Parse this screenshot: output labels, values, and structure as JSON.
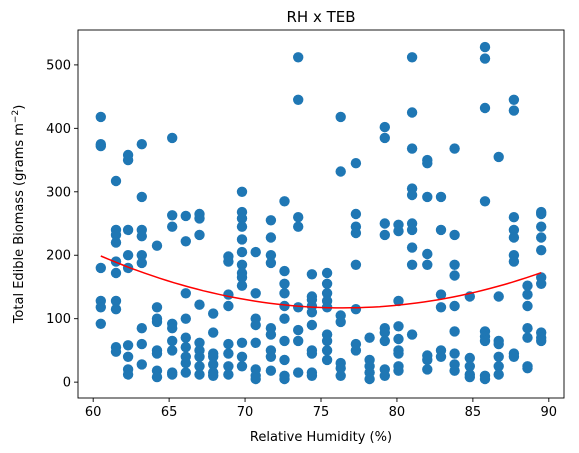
{
  "chart_data": {
    "type": "scatter",
    "title": "RH x TEB",
    "xlabel": "Relative Humidity (%)",
    "ylabel_main": "Total Edible Biomass (grams m",
    "ylabel_exp": "−2",
    "ylabel_close": ")",
    "xlim": [
      59.0,
      91.0
    ],
    "ylim": [
      -25,
      555
    ],
    "xticks": [
      60,
      65,
      70,
      75,
      80,
      85,
      90
    ],
    "yticks": [
      0,
      100,
      200,
      300,
      400,
      500
    ],
    "colors": {
      "points": "#1f77b4",
      "fit": "#ff0000"
    },
    "fit_line": {
      "type": "quadratic",
      "x_range": [
        60.5,
        89.5
      ],
      "coefficients": {
        "a": 0.3235,
        "b": -49.44,
        "vertex_x": 76.4,
        "vertex_y": 117
      }
    },
    "x_groups": [
      60.5,
      61.5,
      62.3,
      63.2,
      64.2,
      65.2,
      66.1,
      67.0,
      67.9,
      68.9,
      69.8,
      70.7,
      71.7,
      72.6,
      73.5,
      74.4,
      75.4,
      76.3,
      77.3,
      78.2,
      79.2,
      80.1,
      81.0,
      82.0,
      82.9,
      83.8,
      84.8,
      85.8,
      86.7,
      87.7,
      88.6,
      89.5
    ],
    "points": [
      [
        60.5,
        418
      ],
      [
        60.5,
        372
      ],
      [
        60.5,
        375
      ],
      [
        60.5,
        180
      ],
      [
        60.5,
        128
      ],
      [
        60.5,
        118
      ],
      [
        60.5,
        92
      ],
      [
        61.5,
        317
      ],
      [
        61.5,
        240
      ],
      [
        61.5,
        232
      ],
      [
        61.5,
        220
      ],
      [
        61.5,
        190
      ],
      [
        61.5,
        172
      ],
      [
        61.5,
        128
      ],
      [
        61.5,
        115
      ],
      [
        61.5,
        55
      ],
      [
        61.5,
        48
      ],
      [
        62.3,
        358
      ],
      [
        62.3,
        350
      ],
      [
        62.3,
        240
      ],
      [
        62.3,
        200
      ],
      [
        62.3,
        180
      ],
      [
        62.3,
        58
      ],
      [
        62.3,
        40
      ],
      [
        62.3,
        20
      ],
      [
        62.3,
        12
      ],
      [
        63.2,
        375
      ],
      [
        63.2,
        292
      ],
      [
        63.2,
        240
      ],
      [
        63.2,
        230
      ],
      [
        63.2,
        200
      ],
      [
        63.2,
        188
      ],
      [
        63.2,
        85
      ],
      [
        63.2,
        60
      ],
      [
        63.2,
        28
      ],
      [
        64.2,
        215
      ],
      [
        64.2,
        118
      ],
      [
        64.2,
        100
      ],
      [
        64.2,
        95
      ],
      [
        64.2,
        50
      ],
      [
        64.2,
        45
      ],
      [
        64.2,
        18
      ],
      [
        64.2,
        8
      ],
      [
        65.2,
        385
      ],
      [
        65.2,
        263
      ],
      [
        65.2,
        245
      ],
      [
        65.2,
        92
      ],
      [
        65.2,
        85
      ],
      [
        65.2,
        65
      ],
      [
        65.2,
        50
      ],
      [
        65.2,
        15
      ],
      [
        65.2,
        12
      ],
      [
        66.1,
        262
      ],
      [
        66.1,
        222
      ],
      [
        66.1,
        140
      ],
      [
        66.1,
        100
      ],
      [
        66.1,
        70
      ],
      [
        66.1,
        55
      ],
      [
        66.1,
        40
      ],
      [
        66.1,
        30
      ],
      [
        66.1,
        15
      ],
      [
        67.0,
        265
      ],
      [
        67.0,
        258
      ],
      [
        67.0,
        232
      ],
      [
        67.0,
        122
      ],
      [
        67.0,
        62
      ],
      [
        67.0,
        50
      ],
      [
        67.0,
        40
      ],
      [
        67.0,
        25
      ],
      [
        67.0,
        12
      ],
      [
        67.9,
        108
      ],
      [
        67.9,
        78
      ],
      [
        67.9,
        45
      ],
      [
        67.9,
        40
      ],
      [
        67.9,
        28
      ],
      [
        67.9,
        15
      ],
      [
        67.9,
        10
      ],
      [
        68.9,
        198
      ],
      [
        68.9,
        190
      ],
      [
        68.9,
        138
      ],
      [
        68.9,
        120
      ],
      [
        68.9,
        60
      ],
      [
        68.9,
        45
      ],
      [
        68.9,
        25
      ],
      [
        68.9,
        12
      ],
      [
        69.8,
        300
      ],
      [
        69.8,
        268
      ],
      [
        69.8,
        258
      ],
      [
        69.8,
        245
      ],
      [
        69.8,
        225
      ],
      [
        69.8,
        205
      ],
      [
        69.8,
        185
      ],
      [
        69.8,
        172
      ],
      [
        69.8,
        165
      ],
      [
        69.8,
        152
      ],
      [
        69.8,
        62
      ],
      [
        69.8,
        40
      ],
      [
        69.8,
        25
      ],
      [
        70.7,
        205
      ],
      [
        70.7,
        140
      ],
      [
        70.7,
        100
      ],
      [
        70.7,
        90
      ],
      [
        70.7,
        62
      ],
      [
        70.7,
        20
      ],
      [
        70.7,
        10
      ],
      [
        70.7,
        5
      ],
      [
        71.7,
        255
      ],
      [
        71.7,
        228
      ],
      [
        71.7,
        200
      ],
      [
        71.7,
        188
      ],
      [
        71.7,
        85
      ],
      [
        71.7,
        75
      ],
      [
        71.7,
        50
      ],
      [
        71.7,
        40
      ],
      [
        71.7,
        18
      ],
      [
        72.6,
        285
      ],
      [
        72.6,
        175
      ],
      [
        72.6,
        155
      ],
      [
        72.6,
        140
      ],
      [
        72.6,
        120
      ],
      [
        72.6,
        100
      ],
      [
        72.6,
        65
      ],
      [
        72.6,
        35
      ],
      [
        72.6,
        10
      ],
      [
        72.6,
        5
      ],
      [
        73.5,
        512
      ],
      [
        73.5,
        445
      ],
      [
        73.5,
        260
      ],
      [
        73.5,
        245
      ],
      [
        73.5,
        118
      ],
      [
        73.5,
        82
      ],
      [
        73.5,
        65
      ],
      [
        73.5,
        15
      ],
      [
        74.4,
        170
      ],
      [
        74.4,
        135
      ],
      [
        74.4,
        130
      ],
      [
        74.4,
        120
      ],
      [
        74.4,
        110
      ],
      [
        74.4,
        90
      ],
      [
        74.4,
        50
      ],
      [
        74.4,
        45
      ],
      [
        74.4,
        15
      ],
      [
        74.4,
        10
      ],
      [
        75.4,
        172
      ],
      [
        75.4,
        155
      ],
      [
        75.4,
        140
      ],
      [
        75.4,
        128
      ],
      [
        75.4,
        118
      ],
      [
        75.4,
        75
      ],
      [
        75.4,
        65
      ],
      [
        75.4,
        50
      ],
      [
        75.4,
        35
      ],
      [
        76.3,
        418
      ],
      [
        76.3,
        332
      ],
      [
        76.3,
        105
      ],
      [
        76.3,
        95
      ],
      [
        76.3,
        30
      ],
      [
        76.3,
        22
      ],
      [
        76.3,
        10
      ],
      [
        77.3,
        345
      ],
      [
        77.3,
        265
      ],
      [
        77.3,
        245
      ],
      [
        77.3,
        235
      ],
      [
        77.3,
        185
      ],
      [
        77.3,
        115
      ],
      [
        77.3,
        60
      ],
      [
        77.3,
        50
      ],
      [
        78.2,
        70
      ],
      [
        78.2,
        35
      ],
      [
        78.2,
        25
      ],
      [
        78.2,
        15
      ],
      [
        78.2,
        5
      ],
      [
        79.2,
        402
      ],
      [
        79.2,
        385
      ],
      [
        79.2,
        250
      ],
      [
        79.2,
        232
      ],
      [
        79.2,
        85
      ],
      [
        79.2,
        78
      ],
      [
        79.2,
        65
      ],
      [
        79.2,
        20
      ],
      [
        79.2,
        10
      ],
      [
        80.1,
        248
      ],
      [
        80.1,
        238
      ],
      [
        80.1,
        128
      ],
      [
        80.1,
        88
      ],
      [
        80.1,
        68
      ],
      [
        80.1,
        50
      ],
      [
        80.1,
        45
      ],
      [
        80.1,
        25
      ],
      [
        80.1,
        18
      ],
      [
        81.0,
        512
      ],
      [
        81.0,
        425
      ],
      [
        81.0,
        368
      ],
      [
        81.0,
        305
      ],
      [
        81.0,
        295
      ],
      [
        81.0,
        250
      ],
      [
        81.0,
        240
      ],
      [
        81.0,
        212
      ],
      [
        81.0,
        185
      ],
      [
        81.0,
        75
      ],
      [
        82.0,
        350
      ],
      [
        82.0,
        345
      ],
      [
        82.0,
        292
      ],
      [
        82.0,
        202
      ],
      [
        82.0,
        185
      ],
      [
        82.0,
        42
      ],
      [
        82.0,
        35
      ],
      [
        82.0,
        20
      ],
      [
        82.9,
        292
      ],
      [
        82.9,
        240
      ],
      [
        82.9,
        138
      ],
      [
        82.9,
        118
      ],
      [
        82.9,
        50
      ],
      [
        82.9,
        40
      ],
      [
        83.8,
        368
      ],
      [
        83.8,
        232
      ],
      [
        83.8,
        185
      ],
      [
        83.8,
        168
      ],
      [
        83.8,
        120
      ],
      [
        83.8,
        80
      ],
      [
        83.8,
        45
      ],
      [
        83.8,
        28
      ],
      [
        83.8,
        18
      ],
      [
        84.8,
        135
      ],
      [
        84.8,
        38
      ],
      [
        84.8,
        25
      ],
      [
        84.8,
        12
      ],
      [
        84.8,
        8
      ],
      [
        85.8,
        528
      ],
      [
        85.8,
        510
      ],
      [
        85.8,
        432
      ],
      [
        85.8,
        285
      ],
      [
        85.8,
        80
      ],
      [
        85.8,
        72
      ],
      [
        85.8,
        65
      ],
      [
        85.8,
        10
      ],
      [
        85.8,
        5
      ],
      [
        86.7,
        355
      ],
      [
        86.7,
        135
      ],
      [
        86.7,
        65
      ],
      [
        86.7,
        60
      ],
      [
        86.7,
        40
      ],
      [
        86.7,
        25
      ],
      [
        86.7,
        12
      ],
      [
        87.7,
        445
      ],
      [
        87.7,
        428
      ],
      [
        87.7,
        260
      ],
      [
        87.7,
        240
      ],
      [
        87.7,
        228
      ],
      [
        87.7,
        200
      ],
      [
        87.7,
        190
      ],
      [
        87.7,
        45
      ],
      [
        87.7,
        40
      ],
      [
        88.6,
        152
      ],
      [
        88.6,
        138
      ],
      [
        88.6,
        120
      ],
      [
        88.6,
        85
      ],
      [
        88.6,
        70
      ],
      [
        88.6,
        25
      ],
      [
        88.6,
        22
      ],
      [
        89.5,
        268
      ],
      [
        89.5,
        265
      ],
      [
        89.5,
        245
      ],
      [
        89.5,
        228
      ],
      [
        89.5,
        208
      ],
      [
        89.5,
        165
      ],
      [
        89.5,
        155
      ],
      [
        89.5,
        78
      ],
      [
        89.5,
        70
      ],
      [
        89.5,
        65
      ]
    ]
  }
}
